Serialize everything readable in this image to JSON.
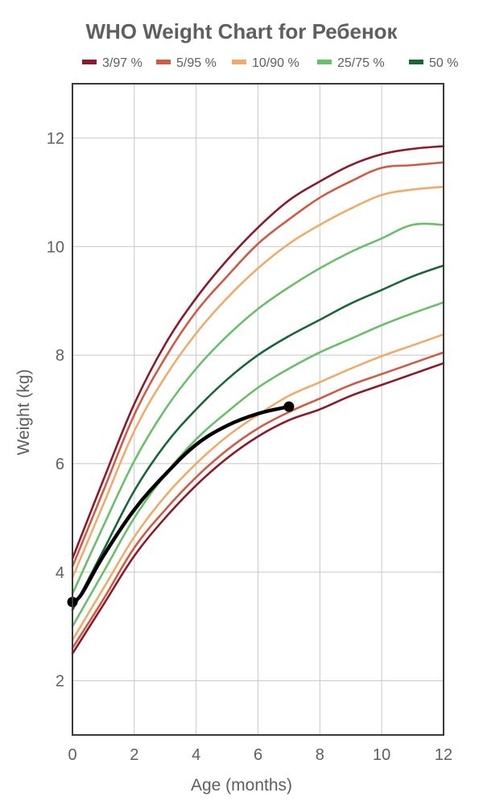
{
  "chart_data": {
    "type": "line",
    "title": "WHO Weight Chart for Ребенок",
    "xlabel": "Age (months)",
    "ylabel": "Weight (kg)",
    "xlim": [
      0,
      12
    ],
    "ylim": [
      1,
      13
    ],
    "xticks": [
      0,
      2,
      4,
      6,
      8,
      10,
      12
    ],
    "yticks": [
      2,
      4,
      6,
      8,
      10,
      12
    ],
    "grid": true,
    "legend_position": "top",
    "legend": [
      {
        "label": "3/97 %",
        "color": "#8b1a2b"
      },
      {
        "label": "5/95 %",
        "color": "#d05a42"
      },
      {
        "label": "10/90 %",
        "color": "#f0ab6a"
      },
      {
        "label": "25/75 %",
        "color": "#6abf6a"
      },
      {
        "label": "50 %",
        "color": "#1a6638"
      }
    ],
    "x": [
      0,
      1,
      2,
      3,
      4,
      5,
      6,
      7,
      8,
      9,
      10,
      11,
      12
    ],
    "series": [
      {
        "group": "3/97 %",
        "color": "#8b1a2b",
        "values": [
          2.5,
          3.4,
          4.3,
          5.0,
          5.6,
          6.1,
          6.5,
          6.8,
          7.0,
          7.25,
          7.45,
          7.65,
          7.85
        ]
      },
      {
        "group": "5/95 %",
        "color": "#d05a42",
        "values": [
          2.6,
          3.5,
          4.45,
          5.15,
          5.75,
          6.25,
          6.65,
          6.95,
          7.2,
          7.45,
          7.65,
          7.85,
          8.05
        ]
      },
      {
        "group": "10/90 %",
        "color": "#f0ab6a",
        "values": [
          2.75,
          3.7,
          4.65,
          5.4,
          6.0,
          6.5,
          6.9,
          7.25,
          7.5,
          7.75,
          7.98,
          8.18,
          8.38
        ]
      },
      {
        "group": "25/75 %",
        "color": "#6abf6a",
        "values": [
          3.0,
          4.0,
          5.0,
          5.8,
          6.45,
          6.95,
          7.4,
          7.75,
          8.05,
          8.3,
          8.55,
          8.77,
          8.97
        ]
      },
      {
        "group": "50 %",
        "color": "#1a6638",
        "values": [
          3.3,
          4.4,
          5.5,
          6.35,
          7.0,
          7.55,
          8.0,
          8.35,
          8.65,
          8.95,
          9.2,
          9.45,
          9.65
        ]
      },
      {
        "group": "25/75 %",
        "color": "#6abf6a",
        "values": [
          3.6,
          4.85,
          6.05,
          7.0,
          7.75,
          8.35,
          8.85,
          9.25,
          9.6,
          9.9,
          10.15,
          10.4,
          10.4
        ]
      },
      {
        "group": "10/90 %",
        "color": "#f0ab6a",
        "values": [
          3.9,
          5.25,
          6.6,
          7.6,
          8.4,
          9.05,
          9.6,
          10.05,
          10.4,
          10.7,
          10.95,
          11.05,
          11.1
        ]
      },
      {
        "group": "5/95 %",
        "color": "#d05a42",
        "values": [
          4.1,
          5.5,
          6.9,
          7.95,
          8.8,
          9.45,
          10.05,
          10.5,
          10.9,
          11.2,
          11.45,
          11.5,
          11.55
        ]
      },
      {
        "group": "3/97 %",
        "color": "#8b1a2b",
        "values": [
          4.25,
          5.7,
          7.1,
          8.2,
          9.05,
          9.75,
          10.35,
          10.85,
          11.2,
          11.5,
          11.7,
          11.8,
          11.85
        ]
      }
    ],
    "child": {
      "color": "#000000",
      "x": [
        0,
        0.3,
        1,
        2,
        3,
        4,
        5,
        6,
        7
      ],
      "values": [
        3.45,
        3.6,
        4.3,
        5.15,
        5.8,
        6.35,
        6.7,
        6.92,
        7.05
      ],
      "markers": [
        {
          "x": 0,
          "y": 3.45
        },
        {
          "x": 7,
          "y": 7.05
        }
      ]
    }
  }
}
